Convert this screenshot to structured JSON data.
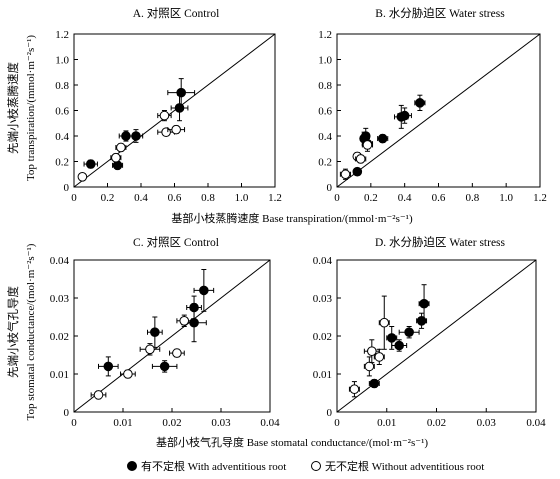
{
  "figure": {
    "top_ylabel_cn": "先端小枝蒸腾速度",
    "top_ylabel_en": "Top transpiration/(mmol·m⁻²s⁻¹)",
    "top_xlabel": "基部小枝蒸腾速度 Base transpiration/(mmol·m⁻²s⁻¹)",
    "bottom_ylabel_cn": "先端小枝气孔导度",
    "bottom_ylabel_en": "Top stomatal conductance/(mol·m⁻²s⁻¹)",
    "bottom_xlabel": "基部小枝气孔导度 Base stomatal conductance/(mol·m⁻²s⁻¹)",
    "legend": {
      "with_label": "有不定根 With adventitious root",
      "without_label": "无不定根 Without adventitious root"
    }
  },
  "colors": {
    "filled": "#000000",
    "open_fill": "#ffffff",
    "stroke": "#000000"
  },
  "chart_data": [
    {
      "type": "scatter",
      "title": "A. 对照区 Control",
      "xlim": [
        0,
        1.2
      ],
      "ylim": [
        0,
        1.2
      ],
      "xticks": [
        "0",
        "0.2",
        "0.4",
        "0.6",
        "0.8",
        "1.0",
        "1.2"
      ],
      "yticks": [
        "0",
        "0.2",
        "0.4",
        "0.6",
        "0.8",
        "1.0",
        "1.2"
      ],
      "reference_line": "1:1",
      "series": [
        {
          "name": "有不定根 With adventitious root",
          "marker": "filled",
          "points": [
            {
              "x": 0.1,
              "y": 0.18,
              "xerr": 0.04,
              "yerr": 0.03
            },
            {
              "x": 0.26,
              "y": 0.17,
              "xerr": 0.03,
              "yerr": 0.03
            },
            {
              "x": 0.31,
              "y": 0.4,
              "xerr": 0.04,
              "yerr": 0.04
            },
            {
              "x": 0.37,
              "y": 0.4,
              "xerr": 0.04,
              "yerr": 0.05
            },
            {
              "x": 0.63,
              "y": 0.62,
              "xerr": 0.05,
              "yerr": 0.1
            },
            {
              "x": 0.64,
              "y": 0.74,
              "xerr": 0.08,
              "yerr": 0.11
            }
          ]
        },
        {
          "name": "无不定根 Without adventitious root",
          "marker": "open",
          "points": [
            {
              "x": 0.05,
              "y": 0.08,
              "xerr": 0.02,
              "yerr": 0.02
            },
            {
              "x": 0.25,
              "y": 0.23,
              "xerr": 0.03,
              "yerr": 0.03
            },
            {
              "x": 0.28,
              "y": 0.31,
              "xerr": 0.03,
              "yerr": 0.03
            },
            {
              "x": 0.54,
              "y": 0.56,
              "xerr": 0.04,
              "yerr": 0.04
            },
            {
              "x": 0.55,
              "y": 0.43,
              "xerr": 0.05,
              "yerr": 0.02
            },
            {
              "x": 0.61,
              "y": 0.45,
              "xerr": 0.05,
              "yerr": 0.03
            }
          ]
        }
      ]
    },
    {
      "type": "scatter",
      "title": "B. 水分胁迫区 Water stress",
      "xlim": [
        0,
        1.2
      ],
      "ylim": [
        0,
        1.2
      ],
      "xticks": [
        "0",
        "0.2",
        "0.4",
        "0.6",
        "0.8",
        "1.0",
        "1.2"
      ],
      "yticks": [
        "0",
        "0.2",
        "0.4",
        "0.6",
        "0.8",
        "1.0",
        "1.2"
      ],
      "reference_line": "1:1",
      "series": [
        {
          "name": "有不定根 With adventitious root",
          "marker": "filled",
          "points": [
            {
              "x": 0.12,
              "y": 0.12,
              "xerr": 0.02,
              "yerr": 0.02
            },
            {
              "x": 0.16,
              "y": 0.38,
              "xerr": 0.02,
              "yerr": 0.05
            },
            {
              "x": 0.17,
              "y": 0.4,
              "xerr": 0.02,
              "yerr": 0.06
            },
            {
              "x": 0.18,
              "y": 0.34,
              "xerr": 0.03,
              "yerr": 0.04
            },
            {
              "x": 0.27,
              "y": 0.38,
              "xerr": 0.03,
              "yerr": 0.03
            },
            {
              "x": 0.38,
              "y": 0.55,
              "xerr": 0.04,
              "yerr": 0.09
            },
            {
              "x": 0.4,
              "y": 0.56,
              "xerr": 0.04,
              "yerr": 0.06
            },
            {
              "x": 0.49,
              "y": 0.66,
              "xerr": 0.03,
              "yerr": 0.06
            }
          ]
        },
        {
          "name": "无不定根 Without adventitious root",
          "marker": "open",
          "points": [
            {
              "x": 0.05,
              "y": 0.1,
              "xerr": 0.03,
              "yerr": 0.04
            },
            {
              "x": 0.12,
              "y": 0.24,
              "xerr": 0.02,
              "yerr": 0.03
            },
            {
              "x": 0.14,
              "y": 0.22,
              "xerr": 0.03,
              "yerr": 0.03
            },
            {
              "x": 0.18,
              "y": 0.33,
              "xerr": 0.03,
              "yerr": 0.05
            }
          ]
        }
      ]
    },
    {
      "type": "scatter",
      "title": "C. 对照区 Control",
      "xlim": [
        0,
        0.04
      ],
      "ylim": [
        0,
        0.04
      ],
      "xticks": [
        "0",
        "0.01",
        "0.02",
        "0.03",
        "0.04"
      ],
      "yticks": [
        "0",
        "0.01",
        "0.02",
        "0.03",
        "0.04"
      ],
      "reference_line": "1:1",
      "series": [
        {
          "name": "有不定根 With adventitious root",
          "marker": "filled",
          "points": [
            {
              "x": 0.007,
              "y": 0.012,
              "xerr": 0.002,
              "yerr": 0.0025
            },
            {
              "x": 0.0165,
              "y": 0.021,
              "xerr": 0.0015,
              "yerr": 0.004
            },
            {
              "x": 0.0185,
              "y": 0.012,
              "xerr": 0.0025,
              "yerr": 0.0015
            },
            {
              "x": 0.0245,
              "y": 0.0235,
              "xerr": 0.0025,
              "yerr": 0.005
            },
            {
              "x": 0.0245,
              "y": 0.0275,
              "xerr": 0.0015,
              "yerr": 0.003
            },
            {
              "x": 0.0265,
              "y": 0.032,
              "xerr": 0.002,
              "yerr": 0.0055
            }
          ]
        },
        {
          "name": "无不定根 Without adventitious root",
          "marker": "open",
          "points": [
            {
              "x": 0.005,
              "y": 0.0045,
              "xerr": 0.0015,
              "yerr": 0.001
            },
            {
              "x": 0.011,
              "y": 0.01,
              "xerr": 0.0015,
              "yerr": 0.001
            },
            {
              "x": 0.0155,
              "y": 0.0165,
              "xerr": 0.002,
              "yerr": 0.0015
            },
            {
              "x": 0.021,
              "y": 0.0155,
              "xerr": 0.0015,
              "yerr": 0.001
            },
            {
              "x": 0.0225,
              "y": 0.024,
              "xerr": 0.0015,
              "yerr": 0.0015
            }
          ]
        }
      ]
    },
    {
      "type": "scatter",
      "title": "D. 水分胁迫区 Water stress",
      "xlim": [
        0,
        0.04
      ],
      "ylim": [
        0,
        0.04
      ],
      "xticks": [
        "0",
        "0.01",
        "0.02",
        "0.03",
        "0.04"
      ],
      "yticks": [
        "0",
        "0.01",
        "0.02",
        "0.03",
        "0.04"
      ],
      "reference_line": "1:1",
      "series": [
        {
          "name": "有不定根 With adventitious root",
          "marker": "filled",
          "points": [
            {
              "x": 0.0075,
              "y": 0.0075,
              "xerr": 0.001,
              "yerr": 0.001
            },
            {
              "x": 0.011,
              "y": 0.0195,
              "xerr": 0.001,
              "yerr": 0.003
            },
            {
              "x": 0.0125,
              "y": 0.0175,
              "xerr": 0.0015,
              "yerr": 0.0015
            },
            {
              "x": 0.0145,
              "y": 0.021,
              "xerr": 0.002,
              "yerr": 0.0015
            },
            {
              "x": 0.017,
              "y": 0.024,
              "xerr": 0.001,
              "yerr": 0.002
            },
            {
              "x": 0.0175,
              "y": 0.0285,
              "xerr": 0.001,
              "yerr": 0.005
            }
          ]
        },
        {
          "name": "无不定根 Without adventitious root",
          "marker": "open",
          "points": [
            {
              "x": 0.0035,
              "y": 0.006,
              "xerr": 0.001,
              "yerr": 0.002
            },
            {
              "x": 0.0065,
              "y": 0.012,
              "xerr": 0.001,
              "yerr": 0.0025
            },
            {
              "x": 0.007,
              "y": 0.016,
              "xerr": 0.0015,
              "yerr": 0.003
            },
            {
              "x": 0.0085,
              "y": 0.0145,
              "xerr": 0.001,
              "yerr": 0.002
            },
            {
              "x": 0.0095,
              "y": 0.0235,
              "xerr": 0.001,
              "yerr": 0.007
            }
          ]
        }
      ]
    }
  ]
}
